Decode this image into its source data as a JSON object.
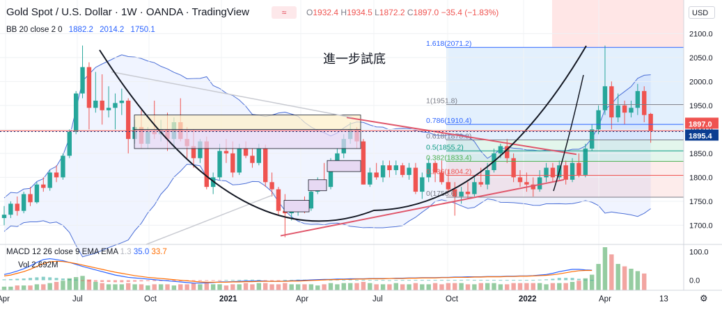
{
  "header": {
    "title": "Gold Spot / U.S. Dollar · 1W · OANDA · TradingView",
    "ohlc_text": "O1932.4 H1934.5 L1872.2 C1897.0 −35.4 (−1.83%)",
    "ohlc_o_label": "O",
    "ohlc_o": "1932.4",
    "ohlc_h_label": "H",
    "ohlc_h": "1934.5",
    "ohlc_l_label": "L",
    "ohlc_l": "1872.2",
    "ohlc_c_label": "C",
    "ohlc_c": "1897.0",
    "ohlc_change": "−35.4 (−1.83%)",
    "flag_glyph": "≈",
    "currency_label": "USD"
  },
  "bb_legend": {
    "label": "BB 20 close 2 0",
    "basis": "1882.2",
    "upper": "2014.2",
    "lower": "1750.1"
  },
  "macd_legend": {
    "label": "MACD 12 26 close 9 EMA EMA",
    "histogram": "1.3",
    "macd": "35.0",
    "signal": "33.7"
  },
  "volume_legend": {
    "label": "Vol",
    "value": "2.692M"
  },
  "annotation": "進一步試底",
  "chart_data": {
    "type": "candlestick",
    "symbol": "Gold Spot / U.S. Dollar",
    "interval": "1W",
    "y_ticks": [
      1700,
      1750,
      1800,
      1850,
      1900,
      1950,
      2000,
      2050,
      2100
    ],
    "y_tick_labels": [
      "1700.0",
      "1750.0",
      "1800.0",
      "1850.0",
      "1900.0",
      "1950.0",
      "2000.0",
      "2050.0",
      "2100.0"
    ],
    "ylim": [
      1660,
      2170
    ],
    "x_labels": [
      "Apr",
      "Jul",
      "Oct",
      "2021",
      "Apr",
      "Jul",
      "Oct",
      "2022",
      "Apr",
      "13"
    ],
    "price_labels": [
      {
        "value": "1897.0",
        "price": 1897,
        "color": "#ef5350"
      },
      {
        "value": "1895.4",
        "price": 1895.4,
        "color": "#0b3d91"
      }
    ],
    "fibonacci": [
      {
        "ratio": "1.618(2071.2)",
        "price": 2071.2,
        "color": "#2962ff"
      },
      {
        "ratio": "1(1951.8)",
        "price": 1951.8,
        "color": "#787b86"
      },
      {
        "ratio": "0.786(1910.4)",
        "price": 1910.4,
        "color": "#2962ff"
      },
      {
        "ratio": "0.618(1878.0)",
        "price": 1878.0,
        "color": "#787b86"
      },
      {
        "ratio": "0.5(1855.2)",
        "price": 1855.2,
        "color": "#089981"
      },
      {
        "ratio": "0.382(1833.4)",
        "price": 1833.4,
        "color": "#4caf50"
      },
      {
        "ratio": "0.236(1804.2)",
        "price": 1804.2,
        "color": "#ef5350"
      },
      {
        "ratio": "0(1758.6)",
        "price": 1758.6,
        "color": "#787b86"
      }
    ],
    "candles": [
      [
        1715,
        1740,
        1700,
        1722
      ],
      [
        1722,
        1750,
        1715,
        1745
      ],
      [
        1745,
        1760,
        1720,
        1730
      ],
      [
        1730,
        1770,
        1725,
        1765
      ],
      [
        1765,
        1780,
        1740,
        1748
      ],
      [
        1748,
        1790,
        1745,
        1785
      ],
      [
        1785,
        1800,
        1770,
        1778
      ],
      [
        1778,
        1815,
        1772,
        1810
      ],
      [
        1810,
        1825,
        1790,
        1800
      ],
      [
        1800,
        1850,
        1795,
        1845
      ],
      [
        1845,
        1900,
        1840,
        1895
      ],
      [
        1895,
        1980,
        1890,
        1975
      ],
      [
        1975,
        2075,
        1965,
        2030
      ],
      [
        2030,
        2040,
        1900,
        1945
      ],
      [
        1945,
        2020,
        1935,
        1960
      ],
      [
        1960,
        2015,
        1910,
        1940
      ],
      [
        1940,
        1990,
        1925,
        1945
      ],
      [
        1945,
        1975,
        1900,
        1955
      ],
      [
        1955,
        1985,
        1930,
        1960
      ],
      [
        1960,
        1965,
        1850,
        1880
      ],
      [
        1880,
        1920,
        1870,
        1905
      ],
      [
        1905,
        1940,
        1860,
        1870
      ],
      [
        1870,
        1905,
        1860,
        1895
      ],
      [
        1895,
        1960,
        1880,
        1890
      ],
      [
        1890,
        1920,
        1875,
        1900
      ],
      [
        1900,
        1935,
        1855,
        1880
      ],
      [
        1880,
        1925,
        1860,
        1915
      ],
      [
        1915,
        1965,
        1875,
        1880
      ],
      [
        1880,
        1905,
        1840,
        1865
      ],
      [
        1865,
        1900,
        1820,
        1840
      ],
      [
        1840,
        1880,
        1830,
        1875
      ],
      [
        1875,
        1885,
        1775,
        1780
      ],
      [
        1780,
        1810,
        1765,
        1800
      ],
      [
        1800,
        1870,
        1795,
        1855
      ],
      [
        1855,
        1880,
        1830,
        1850
      ],
      [
        1850,
        1875,
        1800,
        1810
      ],
      [
        1810,
        1870,
        1805,
        1860
      ],
      [
        1860,
        1875,
        1840,
        1845
      ],
      [
        1845,
        1860,
        1820,
        1830
      ],
      [
        1830,
        1870,
        1825,
        1860
      ],
      [
        1860,
        1868,
        1780,
        1790
      ],
      [
        1790,
        1810,
        1760,
        1775
      ],
      [
        1775,
        1780,
        1720,
        1730
      ],
      [
        1730,
        1765,
        1675,
        1725
      ],
      [
        1725,
        1745,
        1710,
        1730
      ],
      [
        1730,
        1750,
        1720,
        1745
      ],
      [
        1745,
        1760,
        1725,
        1735
      ],
      [
        1735,
        1780,
        1730,
        1770
      ],
      [
        1770,
        1800,
        1765,
        1795
      ],
      [
        1795,
        1830,
        1775,
        1780
      ],
      [
        1780,
        1840,
        1775,
        1835
      ],
      [
        1835,
        1860,
        1825,
        1850
      ],
      [
        1850,
        1890,
        1840,
        1880
      ],
      [
        1880,
        1915,
        1870,
        1900
      ],
      [
        1900,
        1905,
        1860,
        1875
      ],
      [
        1875,
        1880,
        1785,
        1785
      ],
      [
        1785,
        1820,
        1780,
        1810
      ],
      [
        1810,
        1830,
        1795,
        1800
      ],
      [
        1800,
        1835,
        1790,
        1825
      ],
      [
        1825,
        1835,
        1800,
        1815
      ],
      [
        1815,
        1835,
        1805,
        1825
      ],
      [
        1825,
        1830,
        1800,
        1805
      ],
      [
        1805,
        1830,
        1795,
        1820
      ],
      [
        1820,
        1830,
        1765,
        1770
      ],
      [
        1770,
        1810,
        1755,
        1800
      ],
      [
        1800,
        1840,
        1790,
        1830
      ],
      [
        1830,
        1835,
        1790,
        1810
      ],
      [
        1810,
        1835,
        1785,
        1790
      ],
      [
        1790,
        1815,
        1770,
        1775
      ],
      [
        1775,
        1790,
        1720,
        1760
      ],
      [
        1760,
        1780,
        1745,
        1770
      ],
      [
        1770,
        1790,
        1755,
        1765
      ],
      [
        1765,
        1800,
        1760,
        1790
      ],
      [
        1790,
        1820,
        1780,
        1785
      ],
      [
        1785,
        1830,
        1775,
        1815
      ],
      [
        1815,
        1860,
        1810,
        1850
      ],
      [
        1850,
        1870,
        1840,
        1865
      ],
      [
        1865,
        1880,
        1830,
        1840
      ],
      [
        1840,
        1850,
        1790,
        1800
      ],
      [
        1800,
        1815,
        1780,
        1790
      ],
      [
        1790,
        1810,
        1770,
        1785
      ],
      [
        1785,
        1800,
        1760,
        1775
      ],
      [
        1775,
        1815,
        1770,
        1800
      ],
      [
        1800,
        1830,
        1790,
        1820
      ],
      [
        1820,
        1830,
        1790,
        1800
      ],
      [
        1800,
        1835,
        1795,
        1825
      ],
      [
        1825,
        1835,
        1785,
        1795
      ],
      [
        1795,
        1840,
        1790,
        1830
      ],
      [
        1830,
        1850,
        1800,
        1805
      ],
      [
        1805,
        1870,
        1800,
        1860
      ],
      [
        1860,
        1910,
        1855,
        1900
      ],
      [
        1900,
        1950,
        1890,
        1940
      ],
      [
        1940,
        2075,
        1930,
        1990
      ],
      [
        1990,
        2000,
        1900,
        1925
      ],
      [
        1925,
        1975,
        1915,
        1950
      ],
      [
        1950,
        1960,
        1910,
        1935
      ],
      [
        1935,
        1960,
        1925,
        1945
      ],
      [
        1945,
        1995,
        1930,
        1980
      ],
      [
        1980,
        1990,
        1915,
        1930
      ],
      [
        1932.4,
        1934.5,
        1872.2,
        1897.0
      ]
    ],
    "macd_ticks": [
      "100.0",
      "0.0"
    ],
    "macd_ylim": [
      -35,
      120
    ],
    "macd_line": [
      20,
      25,
      32,
      40,
      50,
      62,
      72,
      75,
      72,
      68,
      62,
      55,
      48,
      42,
      36,
      30,
      24,
      18,
      14,
      10,
      8,
      6,
      4,
      2,
      0,
      -2,
      -4,
      -6,
      -8,
      -10,
      -10,
      -9,
      -8,
      -6,
      -6,
      -5,
      -4,
      -3,
      -3,
      -2,
      -3,
      -4,
      -4,
      -3,
      -2,
      -1,
      0,
      1,
      2,
      3,
      3,
      4,
      4,
      5,
      5,
      5,
      6,
      6,
      6,
      6,
      7,
      7,
      8,
      8,
      9,
      9,
      9,
      10,
      10,
      11,
      11,
      12,
      12,
      12,
      13,
      13,
      13,
      14,
      14,
      15,
      15,
      16,
      18,
      20,
      24,
      30,
      34,
      38,
      38,
      36,
      35
    ],
    "macd_signal": [
      15,
      18,
      24,
      30,
      38,
      48,
      58,
      64,
      66,
      65,
      62,
      58,
      53,
      48,
      43,
      38,
      33,
      28,
      24,
      20,
      16,
      13,
      10,
      8,
      6,
      4,
      2,
      0,
      -2,
      -4,
      -6,
      -7,
      -7,
      -7,
      -7,
      -6,
      -6,
      -5,
      -5,
      -4,
      -4,
      -4,
      -4,
      -4,
      -3,
      -3,
      -2,
      -1,
      0,
      1,
      2,
      2,
      3,
      3,
      4,
      4,
      5,
      5,
      5,
      6,
      6,
      6,
      7,
      7,
      8,
      8,
      8,
      9,
      9,
      10,
      10,
      10,
      11,
      11,
      12,
      12,
      12,
      13,
      13,
      14,
      14,
      15,
      16,
      17,
      19,
      22,
      26,
      30,
      33,
      34,
      34
    ],
    "macd_hist": [
      3,
      4,
      5,
      6,
      8,
      10,
      12,
      10,
      8,
      6,
      4,
      2,
      -2,
      -4,
      -5,
      -6,
      -6,
      -7,
      -7,
      -6,
      -5,
      -4,
      -3,
      -3,
      -3,
      -3,
      -3,
      -3,
      -3,
      -3,
      -3,
      -2,
      -2,
      -1,
      1,
      1,
      1,
      2,
      2,
      1,
      -1,
      -1,
      -1,
      1,
      1,
      2,
      2,
      2,
      2,
      2,
      1,
      2,
      1,
      2,
      1,
      1,
      1,
      1,
      1,
      0,
      1,
      1,
      1,
      1,
      1,
      1,
      1,
      1,
      1,
      1,
      1,
      2,
      1,
      1,
      1,
      1,
      1,
      1,
      1,
      1,
      1,
      1,
      2,
      3,
      5,
      8,
      8,
      8,
      5,
      2,
      1
    ],
    "volume": [
      3,
      3,
      4,
      4,
      4,
      5,
      5,
      6,
      7,
      8,
      10,
      11,
      12,
      9,
      7,
      6,
      5,
      5,
      5,
      6,
      5,
      5,
      4,
      5,
      5,
      5,
      4,
      5,
      5,
      6,
      5,
      6,
      5,
      5,
      4,
      5,
      5,
      6,
      5,
      6,
      6,
      5,
      5,
      6,
      5,
      5,
      5,
      5,
      4,
      5,
      6,
      5,
      6,
      6,
      6,
      7,
      6,
      5,
      5,
      5,
      6,
      5,
      5,
      6,
      5,
      5,
      6,
      5,
      6,
      6,
      6,
      5,
      5,
      6,
      6,
      6,
      5,
      5,
      6,
      6,
      6,
      6,
      6,
      5,
      6,
      6,
      6,
      7,
      8,
      10,
      13,
      22,
      36,
      30,
      22,
      20,
      18,
      16,
      14
    ]
  }
}
